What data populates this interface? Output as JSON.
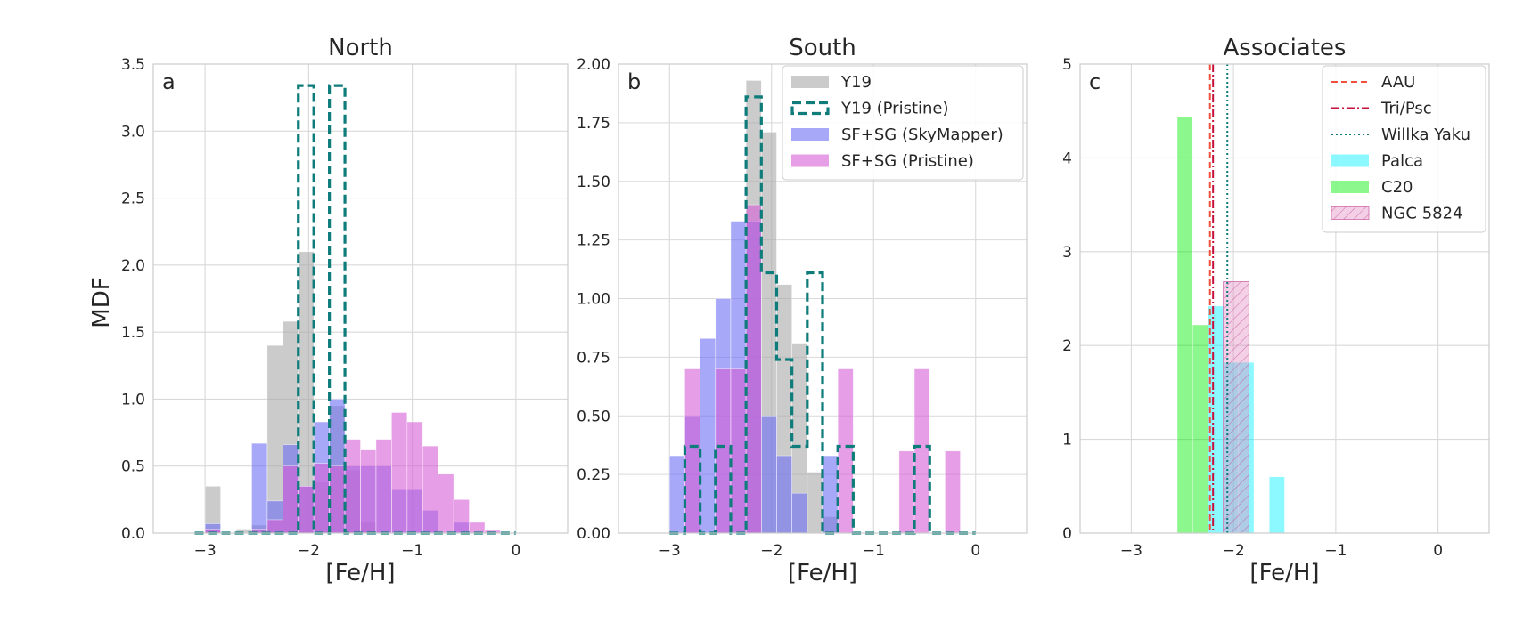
{
  "figure": {
    "ylabel": "MDF"
  },
  "chart_data": [
    {
      "type": "bar",
      "title": "North",
      "panel_label": "a",
      "xlabel": "[Fe/H]",
      "ylabel": "MDF",
      "xlim": [
        -3.5,
        0.5
      ],
      "ylim": [
        0,
        3.5
      ],
      "xticks": [
        -3,
        -2,
        -1,
        0
      ],
      "xtick_labels": [
        "−3",
        "−2",
        "−1",
        "0"
      ],
      "yticks": [
        0,
        0.5,
        1.0,
        1.5,
        2.0,
        2.5,
        3.0,
        3.5
      ],
      "ytick_labels": [
        "0.0",
        "0.5",
        "1.0",
        "1.5",
        "2.0",
        "2.5",
        "3.0",
        "3.5"
      ],
      "grid": true,
      "series": [
        {
          "name": "Y19",
          "style": "fill",
          "color": "#a9a9a9",
          "opacity": 0.6,
          "bins": [
            [
              -3.0,
              -2.85,
              0.35
            ],
            [
              -2.7,
              -2.55,
              0.03
            ],
            [
              -2.55,
              -2.4,
              0.06
            ],
            [
              -2.4,
              -2.25,
              1.4
            ],
            [
              -2.25,
              -2.1,
              1.58
            ],
            [
              -2.1,
              -1.95,
              2.1
            ],
            [
              -1.95,
              -1.8,
              0.38
            ],
            [
              -1.8,
              -1.65,
              0.95
            ],
            [
              -1.65,
              -1.5,
              0.47
            ],
            [
              -1.5,
              -1.35,
              0.08
            ]
          ]
        },
        {
          "name": "SF+SG (SkyMapper)",
          "style": "fill",
          "color": "#6e6ef5",
          "opacity": 0.6,
          "bins": [
            [
              -3.0,
              -2.85,
              0.07
            ],
            [
              -2.55,
              -2.4,
              0.67
            ],
            [
              -2.4,
              -2.25,
              0.24
            ],
            [
              -2.25,
              -2.1,
              0.66
            ],
            [
              -2.1,
              -1.95,
              0.35
            ],
            [
              -1.95,
              -1.8,
              0.83
            ],
            [
              -1.8,
              -1.65,
              1.0
            ],
            [
              -1.65,
              -1.5,
              0.5
            ],
            [
              -1.5,
              -1.35,
              0.5
            ],
            [
              -1.35,
              -1.2,
              0.5
            ],
            [
              -1.2,
              -1.05,
              0.33
            ],
            [
              -1.05,
              -0.9,
              0.33
            ],
            [
              -0.9,
              -0.75,
              0.17
            ],
            [
              -0.6,
              -0.45,
              0.08
            ]
          ]
        },
        {
          "name": "SF+SG (Pristine)",
          "style": "fill",
          "color": "#d65ed6",
          "opacity": 0.6,
          "bins": [
            [
              -3.0,
              -2.85,
              0.03
            ],
            [
              -2.55,
              -2.4,
              0.03
            ],
            [
              -2.4,
              -2.25,
              0.1
            ],
            [
              -2.25,
              -2.1,
              0.5
            ],
            [
              -2.1,
              -1.95,
              0.35
            ],
            [
              -1.95,
              -1.8,
              0.52
            ],
            [
              -1.8,
              -1.65,
              0.5
            ],
            [
              -1.65,
              -1.5,
              0.7
            ],
            [
              -1.5,
              -1.35,
              0.62
            ],
            [
              -1.35,
              -1.2,
              0.7
            ],
            [
              -1.2,
              -1.05,
              0.9
            ],
            [
              -1.05,
              -0.9,
              0.83
            ],
            [
              -0.9,
              -0.75,
              0.65
            ],
            [
              -0.75,
              -0.6,
              0.44
            ],
            [
              -0.6,
              -0.45,
              0.25
            ],
            [
              -0.45,
              -0.3,
              0.08
            ],
            [
              -0.3,
              -0.15,
              0.02
            ]
          ]
        },
        {
          "name": "Y19 (Pristine)",
          "style": "step",
          "color": "#0e7c7b",
          "edges": [
            -3.1,
            -2.1,
            -1.95,
            -1.8,
            -1.65,
            -1.5,
            0.0
          ],
          "values": [
            0.0,
            3.34,
            0.0,
            3.34,
            0.0,
            0.0
          ]
        }
      ]
    },
    {
      "type": "bar",
      "title": "South",
      "panel_label": "b",
      "xlabel": "[Fe/H]",
      "xlim": [
        -3.5,
        0.5
      ],
      "ylim": [
        0,
        2.0
      ],
      "xticks": [
        -3,
        -2,
        -1,
        0
      ],
      "xtick_labels": [
        "−3",
        "−2",
        "−1",
        "0"
      ],
      "yticks": [
        0,
        0.25,
        0.5,
        0.75,
        1.0,
        1.25,
        1.5,
        1.75,
        2.0
      ],
      "ytick_labels": [
        "0.00",
        "0.25",
        "0.50",
        "0.75",
        "1.00",
        "1.25",
        "1.50",
        "1.75",
        "2.00"
      ],
      "grid": true,
      "legend": {
        "position": "top-right",
        "entries": [
          {
            "label": "Y19",
            "kind": "patch",
            "color": "#a9a9a9",
            "opacity": 0.6
          },
          {
            "label": "Y19 (Pristine)",
            "kind": "dashed-patch",
            "color": "#0e7c7b"
          },
          {
            "label": "SF+SG (SkyMapper)",
            "kind": "patch",
            "color": "#6e6ef5",
            "opacity": 0.6
          },
          {
            "label": "SF+SG (Pristine)",
            "kind": "patch",
            "color": "#d65ed6",
            "opacity": 0.6
          }
        ]
      },
      "series": [
        {
          "name": "Y19",
          "style": "fill",
          "color": "#a9a9a9",
          "opacity": 0.6,
          "bins": [
            [
              -2.25,
              -2.1,
              1.93
            ],
            [
              -2.1,
              -1.95,
              1.71
            ],
            [
              -1.95,
              -1.8,
              1.06
            ],
            [
              -1.8,
              -1.65,
              0.81
            ],
            [
              -1.65,
              -1.5,
              0.26
            ],
            [
              -1.5,
              -1.35,
              0.07
            ]
          ]
        },
        {
          "name": "SF+SG (SkyMapper)",
          "style": "fill",
          "color": "#6e6ef5",
          "opacity": 0.6,
          "bins": [
            [
              -3.0,
              -2.85,
              0.33
            ],
            [
              -2.85,
              -2.7,
              0.5
            ],
            [
              -2.7,
              -2.55,
              0.83
            ],
            [
              -2.55,
              -2.4,
              1.0
            ],
            [
              -2.4,
              -2.25,
              1.33
            ],
            [
              -2.25,
              -2.1,
              1.33
            ],
            [
              -2.1,
              -1.95,
              0.5
            ],
            [
              -1.95,
              -1.8,
              0.33
            ],
            [
              -1.8,
              -1.65,
              0.17
            ],
            [
              -1.5,
              -1.35,
              0.33
            ]
          ]
        },
        {
          "name": "SF+SG (Pristine)",
          "style": "fill",
          "color": "#d65ed6",
          "opacity": 0.6,
          "bins": [
            [
              -2.85,
              -2.7,
              0.7
            ],
            [
              -2.55,
              -2.4,
              0.7
            ],
            [
              -2.4,
              -2.25,
              0.7
            ],
            [
              -2.25,
              -2.1,
              1.4
            ],
            [
              -1.35,
              -1.2,
              0.7
            ],
            [
              -0.75,
              -0.6,
              0.35
            ],
            [
              -0.6,
              -0.45,
              0.7
            ],
            [
              -0.3,
              -0.15,
              0.35
            ]
          ]
        },
        {
          "name": "Y19 (Pristine)",
          "style": "step",
          "color": "#0e7c7b",
          "edges": [
            -3.0,
            -2.85,
            -2.7,
            -2.55,
            -2.4,
            -2.25,
            -2.1,
            -1.95,
            -1.8,
            -1.65,
            -1.5,
            -1.35,
            -1.2,
            -1.05,
            -0.9,
            -0.75,
            -0.6,
            -0.45,
            -0.3,
            -0.15,
            0.0
          ],
          "values": [
            0.0,
            0.37,
            0.0,
            0.37,
            0.0,
            1.86,
            1.11,
            0.74,
            0.37,
            1.11,
            0.0,
            0.37,
            0.0,
            0.0,
            0.0,
            0.0,
            0.37,
            0.0,
            0.0,
            0.0
          ]
        }
      ]
    },
    {
      "type": "bar",
      "title": "Associates",
      "panel_label": "c",
      "xlabel": "[Fe/H]",
      "xlim": [
        -3.5,
        0.5
      ],
      "ylim": [
        0,
        5
      ],
      "xticks": [
        -3,
        -2,
        -1,
        0
      ],
      "xtick_labels": [
        "−3",
        "−2",
        "−1",
        "0"
      ],
      "yticks": [
        0,
        1,
        2,
        3,
        4,
        5
      ],
      "ytick_labels": [
        "0",
        "1",
        "2",
        "3",
        "4",
        "5"
      ],
      "grid": true,
      "legend": {
        "position": "top-right",
        "entries": [
          {
            "label": "AAU",
            "kind": "line",
            "color": "#f0503c",
            "dash": "7 4"
          },
          {
            "label": "Tri/Psc",
            "kind": "line",
            "color": "#c8103c",
            "dash": "9 3 2 3"
          },
          {
            "label": "Willka Yaku",
            "kind": "line",
            "color": "#0e7c7b",
            "dash": "2 3"
          },
          {
            "label": "Palca",
            "kind": "patch",
            "color": "#00f0ff",
            "opacity": 0.45
          },
          {
            "label": "C20",
            "kind": "patch",
            "color": "#00ee00",
            "opacity": 0.45
          },
          {
            "label": "NGC 5824",
            "kind": "hatch",
            "color": "#e089c0",
            "opacity": 0.4
          }
        ]
      },
      "series": [
        {
          "name": "C20",
          "style": "fill",
          "color": "#00ee00",
          "opacity": 0.45,
          "bins": [
            [
              -2.55,
              -2.4,
              4.44
            ],
            [
              -2.4,
              -2.25,
              2.22
            ]
          ]
        },
        {
          "name": "Palca",
          "style": "fill",
          "color": "#00f0ff",
          "opacity": 0.45,
          "bins": [
            [
              -2.25,
              -2.1,
              2.42
            ],
            [
              -2.1,
              -1.95,
              1.82
            ],
            [
              -1.95,
              -1.8,
              1.82
            ],
            [
              -1.65,
              -1.5,
              0.6
            ]
          ]
        },
        {
          "name": "NGC 5824",
          "style": "hatch",
          "color": "#e089c0",
          "opacity": 0.4,
          "bins": [
            [
              -2.1,
              -1.85,
              2.68
            ]
          ]
        }
      ],
      "vlines": [
        {
          "name": "AAU",
          "x": -2.23,
          "color": "#f0503c",
          "dash": "7 4"
        },
        {
          "name": "Tri/Psc",
          "x": -2.2,
          "color": "#c8103c",
          "dash": "9 3 2 3"
        },
        {
          "name": "Willka Yaku",
          "x": -2.06,
          "color": "#0e7c7b",
          "dash": "2 3"
        }
      ]
    }
  ]
}
